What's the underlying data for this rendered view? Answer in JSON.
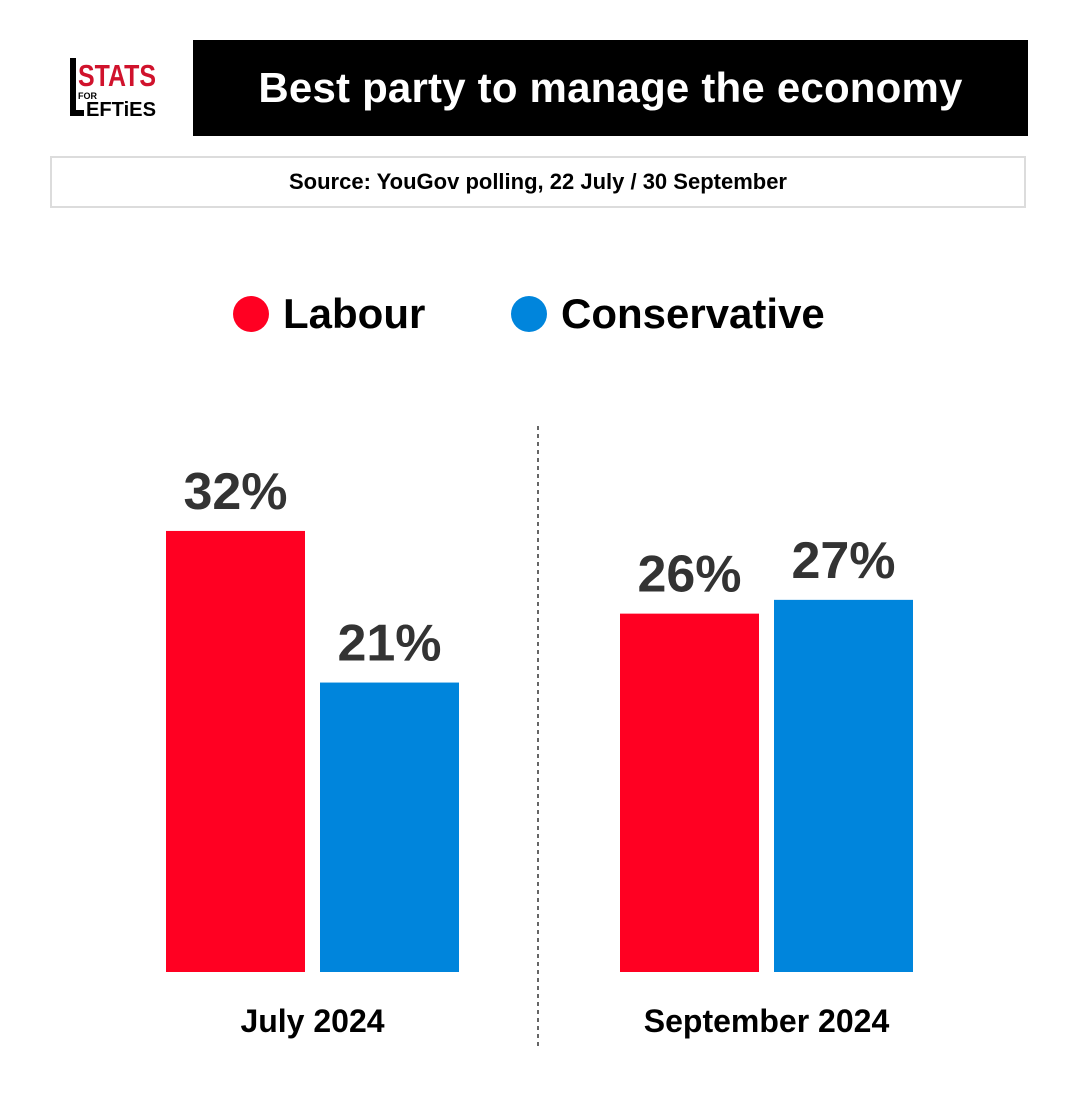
{
  "logo": {
    "text_top": "STATS",
    "text_small": "FOR",
    "text_bottom": "EFTiES",
    "text_initial": "L"
  },
  "header": {
    "title": "Best party to manage the economy"
  },
  "source": {
    "text": "Source: YouGov polling, 22 July / 30 September"
  },
  "colors": {
    "labour": "#ff0022",
    "conservative": "#0085dc",
    "label_text": "#333333",
    "divider": "#333333"
  },
  "legend": [
    {
      "label": "Labour",
      "series": "labour"
    },
    {
      "label": "Conservative",
      "series": "conservative"
    }
  ],
  "chart_data": {
    "type": "bar",
    "title": "Best party to manage the economy",
    "categories": [
      "July 2024",
      "September 2024"
    ],
    "series": [
      {
        "name": "Labour",
        "key": "labour",
        "values": [
          32,
          26
        ],
        "labels": [
          "32%",
          "26%"
        ]
      },
      {
        "name": "Conservative",
        "key": "conservative",
        "values": [
          21,
          27
        ],
        "labels": [
          "21%",
          "27%"
        ]
      }
    ],
    "ylim": [
      0,
      41.5
    ],
    "xlabel": "",
    "ylabel": "",
    "grid": false,
    "legend_position": "top-center"
  }
}
